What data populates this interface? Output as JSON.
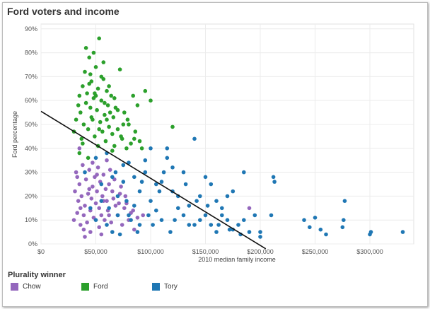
{
  "chart_data": {
    "type": "scatter",
    "title": "Ford voters and income",
    "xlabel": "2010 median family income",
    "ylabel": "Ford percentage",
    "xlim": [
      0,
      340000
    ],
    "ylim": [
      0,
      0.92
    ],
    "x_ticks": [
      0,
      50000,
      100000,
      150000,
      200000,
      250000,
      300000
    ],
    "x_tick_labels": [
      "$0",
      "$50,000",
      "$100,000",
      "$150,000",
      "$200,000",
      "$250,000",
      "$300,000"
    ],
    "y_ticks": [
      0,
      0.1,
      0.2,
      0.3,
      0.4,
      0.5,
      0.6,
      0.7,
      0.8,
      0.9
    ],
    "y_tick_labels": [
      "0%",
      "10%",
      "20%",
      "30%",
      "40%",
      "50%",
      "60%",
      "70%",
      "80%",
      "90%"
    ],
    "grid": true,
    "legend_title": "Plurality winner",
    "legend_position": "bottom",
    "trend_line": [
      [
        0,
        0.555
      ],
      [
        205000,
        -0.02
      ]
    ],
    "series": [
      {
        "name": "Chow",
        "color": "#9467bd",
        "points": [
          [
            30000,
            0.1
          ],
          [
            31000,
            0.22
          ],
          [
            32000,
            0.3
          ],
          [
            33000,
            0.13
          ],
          [
            34000,
            0.18
          ],
          [
            35000,
            0.25
          ],
          [
            36000,
            0.08
          ],
          [
            37000,
            0.2
          ],
          [
            38000,
            0.33
          ],
          [
            39000,
            0.12
          ],
          [
            40000,
            0.16
          ],
          [
            41000,
            0.27
          ],
          [
            42000,
            0.09
          ],
          [
            43000,
            0.21
          ],
          [
            44000,
            0.31
          ],
          [
            45000,
            0.14
          ],
          [
            46000,
            0.19
          ],
          [
            47000,
            0.24
          ],
          [
            48000,
            0.11
          ],
          [
            49000,
            0.28
          ],
          [
            50000,
            0.17
          ],
          [
            51000,
            0.22
          ],
          [
            52000,
            0.32
          ],
          [
            53000,
            0.15
          ],
          [
            54000,
            0.26
          ],
          [
            55000,
            0.12
          ],
          [
            56000,
            0.2
          ],
          [
            57000,
            0.29
          ],
          [
            58000,
            0.1
          ],
          [
            59000,
            0.23
          ],
          [
            60000,
            0.18
          ],
          [
            61000,
            0.14
          ],
          [
            62000,
            0.25
          ],
          [
            64000,
            0.09
          ],
          [
            66000,
            0.19
          ],
          [
            68000,
            0.16
          ],
          [
            70000,
            0.12
          ],
          [
            72000,
            0.21
          ],
          [
            74000,
            0.08
          ],
          [
            76000,
            0.15
          ],
          [
            78000,
            0.17
          ],
          [
            80000,
            0.1
          ],
          [
            82000,
            0.13
          ],
          [
            85000,
            0.06
          ],
          [
            88000,
            0.11
          ],
          [
            60000,
            0.35
          ],
          [
            35000,
            0.4
          ],
          [
            45000,
            0.05
          ],
          [
            55000,
            0.04
          ],
          [
            40000,
            0.03
          ],
          [
            33000,
            0.28
          ],
          [
            47000,
            0.34
          ],
          [
            53000,
            0.07
          ],
          [
            63000,
            0.31
          ],
          [
            67000,
            0.27
          ],
          [
            73000,
            0.24
          ],
          [
            36000,
            0.15
          ],
          [
            44000,
            0.23
          ],
          [
            57000,
            0.18
          ],
          [
            62000,
            0.12
          ],
          [
            39000,
            0.06
          ],
          [
            51000,
            0.29
          ],
          [
            65000,
            0.22
          ],
          [
            71000,
            0.17
          ],
          [
            77000,
            0.2
          ],
          [
            84000,
            0.14
          ],
          [
            93000,
            0.12
          ],
          [
            190000,
            0.15
          ]
        ]
      },
      {
        "name": "Ford",
        "color": "#2ca02c",
        "points": [
          [
            30000,
            0.47
          ],
          [
            32000,
            0.52
          ],
          [
            34000,
            0.58
          ],
          [
            35000,
            0.62
          ],
          [
            36000,
            0.55
          ],
          [
            37000,
            0.44
          ],
          [
            38000,
            0.66
          ],
          [
            39000,
            0.5
          ],
          [
            40000,
            0.72
          ],
          [
            41000,
            0.59
          ],
          [
            42000,
            0.63
          ],
          [
            43000,
            0.48
          ],
          [
            44000,
            0.78
          ],
          [
            45000,
            0.57
          ],
          [
            46000,
            0.68
          ],
          [
            47000,
            0.52
          ],
          [
            48000,
            0.61
          ],
          [
            49000,
            0.45
          ],
          [
            50000,
            0.74
          ],
          [
            51000,
            0.56
          ],
          [
            52000,
            0.65
          ],
          [
            53000,
            0.86
          ],
          [
            54000,
            0.51
          ],
          [
            55000,
            0.6
          ],
          [
            56000,
            0.47
          ],
          [
            57000,
            0.69
          ],
          [
            58000,
            0.54
          ],
          [
            59000,
            0.43
          ],
          [
            60000,
            0.64
          ],
          [
            61000,
            0.58
          ],
          [
            62000,
            0.49
          ],
          [
            63000,
            0.55
          ],
          [
            64000,
            0.62
          ],
          [
            65000,
            0.46
          ],
          [
            66000,
            0.53
          ],
          [
            67000,
            0.41
          ],
          [
            68000,
            0.57
          ],
          [
            70000,
            0.48
          ],
          [
            72000,
            0.73
          ],
          [
            74000,
            0.44
          ],
          [
            76000,
            0.55
          ],
          [
            78000,
            0.4
          ],
          [
            80000,
            0.5
          ],
          [
            82000,
            0.42
          ],
          [
            84000,
            0.62
          ],
          [
            86000,
            0.47
          ],
          [
            88000,
            0.58
          ],
          [
            90000,
            0.43
          ],
          [
            92000,
            0.4
          ],
          [
            95000,
            0.64
          ],
          [
            100000,
            0.6
          ],
          [
            120000,
            0.49
          ],
          [
            41000,
            0.82
          ],
          [
            48000,
            0.8
          ],
          [
            55000,
            0.7
          ],
          [
            44000,
            0.67
          ],
          [
            50000,
            0.62
          ],
          [
            58000,
            0.59
          ],
          [
            46000,
            0.53
          ],
          [
            53000,
            0.48
          ],
          [
            38000,
            0.42
          ],
          [
            60000,
            0.52
          ],
          [
            65000,
            0.39
          ],
          [
            70000,
            0.56
          ],
          [
            75000,
            0.5
          ],
          [
            43000,
            0.36
          ],
          [
            52000,
            0.41
          ],
          [
            62000,
            0.66
          ],
          [
            67000,
            0.61
          ],
          [
            73000,
            0.45
          ],
          [
            79000,
            0.52
          ],
          [
            85000,
            0.44
          ],
          [
            35000,
            0.38
          ],
          [
            45000,
            0.71
          ],
          [
            57000,
            0.76
          ],
          [
            49000,
            0.63
          ]
        ]
      },
      {
        "name": "Tory",
        "color": "#1f77b4",
        "points": [
          [
            40000,
            0.3
          ],
          [
            45000,
            0.15
          ],
          [
            50000,
            0.1
          ],
          [
            55000,
            0.25
          ],
          [
            60000,
            0.38
          ],
          [
            65000,
            0.05
          ],
          [
            70000,
            0.2
          ],
          [
            75000,
            0.33
          ],
          [
            80000,
            0.12
          ],
          [
            85000,
            0.28
          ],
          [
            90000,
            0.08
          ],
          [
            95000,
            0.35
          ],
          [
            100000,
            0.18
          ],
          [
            105000,
            0.25
          ],
          [
            110000,
            0.1
          ],
          [
            115000,
            0.4
          ],
          [
            120000,
            0.22
          ],
          [
            125000,
            0.15
          ],
          [
            130000,
            0.3
          ],
          [
            135000,
            0.08
          ],
          [
            140000,
            0.44
          ],
          [
            145000,
            0.2
          ],
          [
            150000,
            0.12
          ],
          [
            155000,
            0.25
          ],
          [
            160000,
            0.05
          ],
          [
            165000,
            0.15
          ],
          [
            170000,
            0.1
          ],
          [
            175000,
            0.22
          ],
          [
            180000,
            0.08
          ],
          [
            185000,
            0.3
          ],
          [
            190000,
            0.05
          ],
          [
            195000,
            0.12
          ],
          [
            200000,
            0.03
          ],
          [
            210000,
            0.12
          ],
          [
            212000,
            0.28
          ],
          [
            213000,
            0.26
          ],
          [
            240000,
            0.1
          ],
          [
            245000,
            0.07
          ],
          [
            250000,
            0.11
          ],
          [
            255000,
            0.06
          ],
          [
            260000,
            0.04
          ],
          [
            275000,
            0.07
          ],
          [
            276000,
            0.1
          ],
          [
            277000,
            0.18
          ],
          [
            300000,
            0.04
          ],
          [
            301000,
            0.05
          ],
          [
            330000,
            0.05
          ],
          [
            200000,
            0.05
          ],
          [
            170000,
            0.2
          ],
          [
            160000,
            0.18
          ],
          [
            150000,
            0.28
          ],
          [
            120000,
            0.32
          ],
          [
            115000,
            0.36
          ],
          [
            110000,
            0.26
          ],
          [
            100000,
            0.4
          ],
          [
            95000,
            0.3
          ],
          [
            90000,
            0.22
          ],
          [
            85000,
            0.16
          ],
          [
            80000,
            0.34
          ],
          [
            75000,
            0.26
          ],
          [
            70000,
            0.12
          ],
          [
            65000,
            0.28
          ],
          [
            60000,
            0.08
          ],
          [
            55000,
            0.18
          ],
          [
            50000,
            0.36
          ],
          [
            105000,
            0.14
          ],
          [
            125000,
            0.2
          ],
          [
            135000,
            0.16
          ],
          [
            145000,
            0.1
          ],
          [
            155000,
            0.08
          ],
          [
            165000,
            0.12
          ],
          [
            175000,
            0.06
          ],
          [
            185000,
            0.1
          ],
          [
            130000,
            0.12
          ],
          [
            140000,
            0.08
          ],
          [
            118000,
            0.05
          ],
          [
            108000,
            0.22
          ],
          [
            98000,
            0.12
          ],
          [
            88000,
            0.05
          ],
          [
            78000,
            0.18
          ],
          [
            68000,
            0.3
          ],
          [
            112000,
            0.3
          ],
          [
            122000,
            0.1
          ],
          [
            132000,
            0.25
          ],
          [
            142000,
            0.18
          ],
          [
            152000,
            0.16
          ],
          [
            162000,
            0.08
          ],
          [
            172000,
            0.06
          ],
          [
            182000,
            0.04
          ],
          [
            92000,
            0.26
          ],
          [
            102000,
            0.08
          ],
          [
            82000,
            0.1
          ],
          [
            72000,
            0.04
          ],
          [
            62000,
            0.15
          ]
        ]
      }
    ]
  }
}
